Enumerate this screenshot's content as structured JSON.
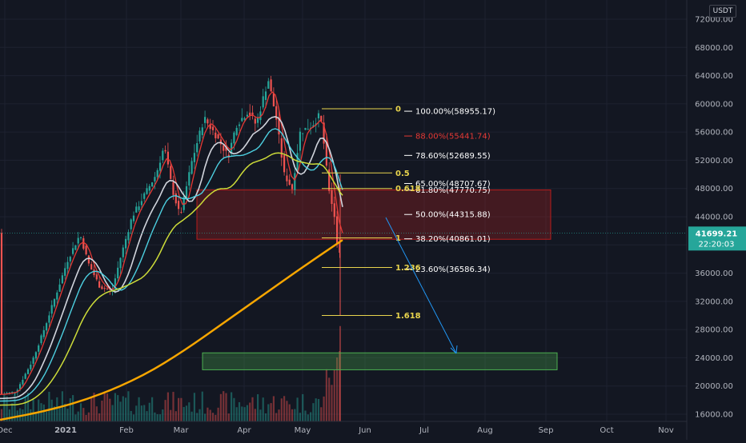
{
  "currency_badge": "USDT",
  "colors": {
    "bg": "#131722",
    "grid": "#1e2230",
    "candle_up": "#26a69a",
    "candle_down": "#ef5350",
    "ema_red": "#e53935",
    "ema_white": "#d1d4dc",
    "ema_teal": "#4dd0e1",
    "ema_yellow": "#cddc39",
    "ma_orange": "#f7a600",
    "fib_line": "#e8d44d",
    "resistance_zone": "rgba(178,34,34,0.3)",
    "support_zone": "rgba(76,175,80,0.3)",
    "arrow": "#2196f3",
    "price_label_bg": "#26a69a"
  },
  "chart_data": {
    "type": "candlestick",
    "x_ticks": [
      "Dec",
      "2021",
      "Feb",
      "Mar",
      "Apr",
      "May",
      "Jun",
      "Jul",
      "Aug",
      "Sep",
      "Oct",
      "Nov"
    ],
    "y_ticks": [
      "16000.00",
      "20000.00",
      "24000.00",
      "28000.00",
      "32000.00",
      "36000.00",
      "40000.00",
      "44000.00",
      "48000.00",
      "52000.00",
      "56000.00",
      "60000.00",
      "64000.00",
      "68000.00",
      "72000.00"
    ],
    "ylim": [
      15000,
      73000
    ],
    "current_price": {
      "value": "41699.21",
      "countdown": "22:20:03"
    },
    "approx_path": [
      [
        0,
        18800
      ],
      [
        20,
        19200
      ],
      [
        40,
        23500
      ],
      [
        55,
        28000
      ],
      [
        70,
        33000
      ],
      [
        85,
        38000
      ],
      [
        100,
        41500
      ],
      [
        110,
        37500
      ],
      [
        125,
        34000
      ],
      [
        140,
        33500
      ],
      [
        150,
        38000
      ],
      [
        165,
        44000
      ],
      [
        180,
        47000
      ],
      [
        195,
        50000
      ],
      [
        205,
        54000
      ],
      [
        215,
        48000
      ],
      [
        225,
        44000
      ],
      [
        240,
        52000
      ],
      [
        255,
        58000
      ],
      [
        270,
        55500
      ],
      [
        285,
        52500
      ],
      [
        295,
        57000
      ],
      [
        310,
        59000
      ],
      [
        320,
        57000
      ],
      [
        335,
        63500
      ],
      [
        345,
        58000
      ],
      [
        355,
        50000
      ],
      [
        365,
        48000
      ],
      [
        375,
        56000
      ],
      [
        390,
        57000
      ],
      [
        400,
        58500
      ],
      [
        405,
        54000
      ],
      [
        410,
        48500
      ],
      [
        418,
        44000
      ],
      [
        423,
        38000
      ],
      [
        428,
        41700
      ]
    ],
    "fib_retracement": [
      {
        "label": "100.00%(58955.17)",
        "price": 58955.17,
        "color": "#ffffff"
      },
      {
        "label": "88.00%(55441.74)",
        "price": 55441.74,
        "color": "#e53935"
      },
      {
        "label": "78.60%(52689.55)",
        "price": 52689.55,
        "color": "#ffffff"
      },
      {
        "label": "65.00%(48707.67)",
        "price": 48707.67,
        "color": "#ffffff"
      },
      {
        "label": "61.80%(47770.75)",
        "price": 47770.75,
        "color": "#ffffff"
      },
      {
        "label": "50.00%(44315.88)",
        "price": 44315.88,
        "color": "#ffffff"
      },
      {
        "label": "38.20%(40861.01)",
        "price": 40861.01,
        "color": "#ffffff"
      },
      {
        "label": "23.60%(36586.34)",
        "price": 36586.34,
        "color": "#ffffff"
      }
    ],
    "fib_extension": [
      {
        "label": "0",
        "price": 59300
      },
      {
        "label": "0.5",
        "price": 50200
      },
      {
        "label": "0.618",
        "price": 48000
      },
      {
        "label": "1",
        "price": 41000
      },
      {
        "label": "1.236",
        "price": 36800
      },
      {
        "label": "1.618",
        "price": 30000
      }
    ],
    "zones": [
      {
        "name": "resistance",
        "from": 40800,
        "to": 47800
      },
      {
        "name": "support",
        "from": 22300,
        "to": 24700
      }
    ]
  }
}
